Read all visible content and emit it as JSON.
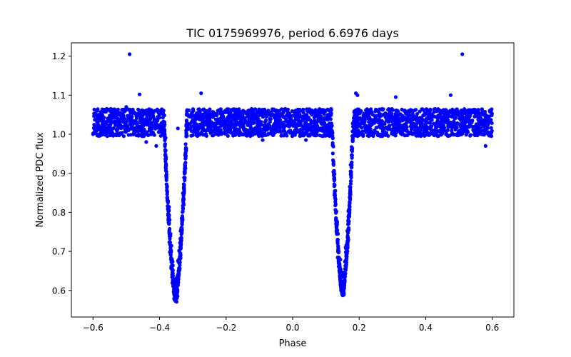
{
  "chart_data": {
    "type": "scatter",
    "title": "TIC 0175969976, period 6.6976 days",
    "xlabel": "Phase",
    "ylabel": "Normalized PDC flux",
    "xlim": [
      -0.665,
      0.665
    ],
    "ylim": [
      0.532,
      1.234
    ],
    "x_ticks": [
      -0.6,
      -0.4,
      -0.2,
      0.0,
      0.2,
      0.4,
      0.6
    ],
    "x_tick_labels": [
      "−0.6",
      "−0.4",
      "−0.2",
      "0.0",
      "0.2",
      "0.4",
      "0.6"
    ],
    "y_ticks": [
      0.6,
      0.7,
      0.8,
      0.9,
      1.0,
      1.1,
      1.2
    ],
    "y_tick_labels": [
      "0.6",
      "0.7",
      "0.8",
      "0.9",
      "1.0",
      "1.1",
      "1.2"
    ],
    "grid": false,
    "marker_color": "#0000ff",
    "series": [
      {
        "name": "",
        "baseline": {
          "x_range": [
            -0.6,
            0.6
          ],
          "y_range": [
            0.995,
            1.065
          ]
        },
        "eclipses": [
          {
            "phase_center": -0.352,
            "min_flux": 0.567,
            "half_width": 0.034
          },
          {
            "phase_center": 0.15,
            "min_flux": 0.58,
            "half_width": 0.032
          }
        ],
        "outliers": [
          {
            "x": -0.49,
            "y": 1.205
          },
          {
            "x": 0.51,
            "y": 1.205
          },
          {
            "x": -0.46,
            "y": 1.102
          },
          {
            "x": -0.275,
            "y": 1.105
          },
          {
            "x": 0.19,
            "y": 1.105
          },
          {
            "x": 0.195,
            "y": 1.1
          },
          {
            "x": 0.31,
            "y": 1.095
          },
          {
            "x": 0.475,
            "y": 1.1
          },
          {
            "x": -0.5,
            "y": 1.07
          },
          {
            "x": -0.44,
            "y": 0.98
          },
          {
            "x": -0.41,
            "y": 0.97
          },
          {
            "x": -0.345,
            "y": 1.015
          },
          {
            "x": 0.58,
            "y": 0.97
          },
          {
            "x": 0.04,
            "y": 0.985
          },
          {
            "x": -0.09,
            "y": 0.985
          }
        ]
      }
    ]
  }
}
